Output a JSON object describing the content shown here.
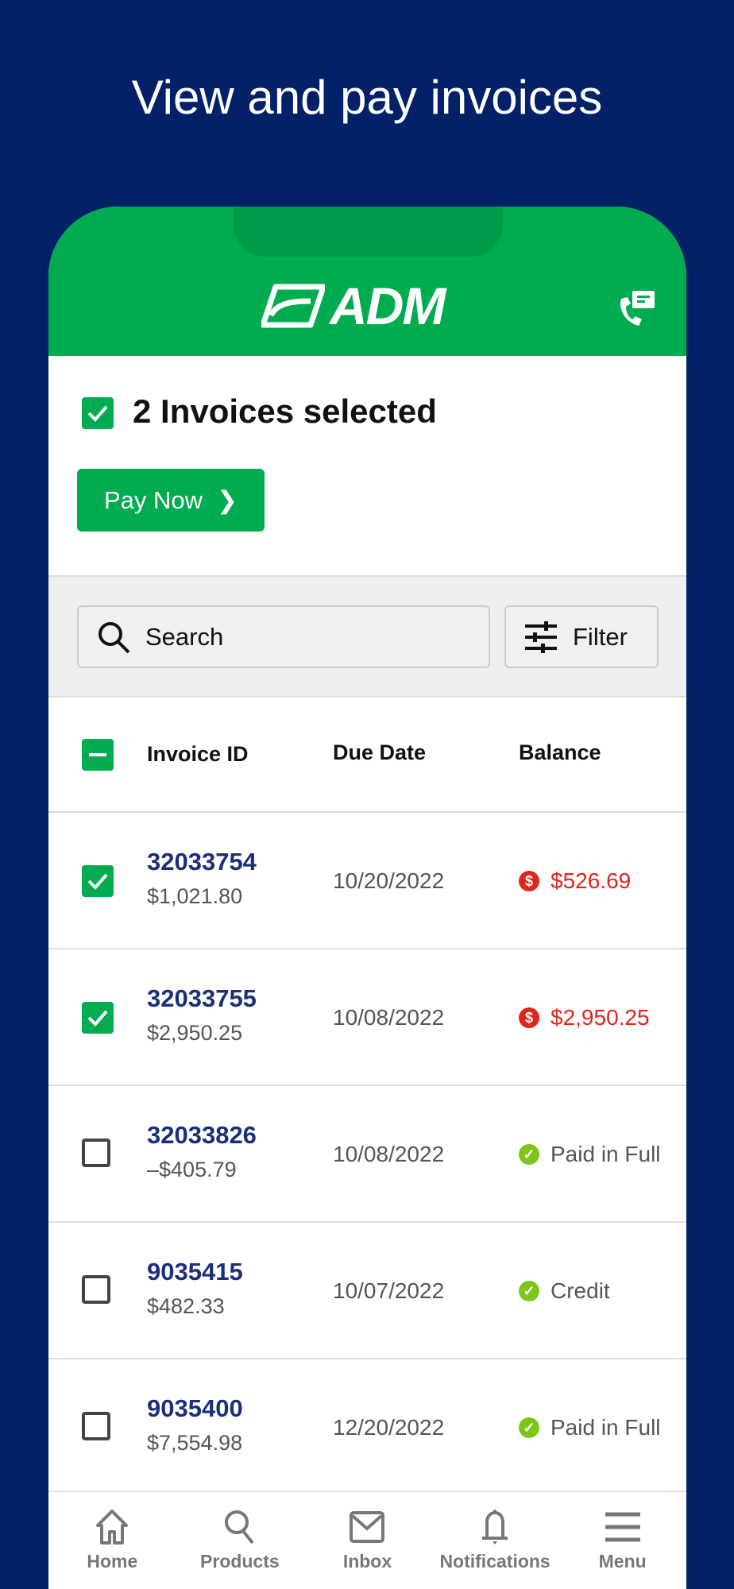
{
  "headline": "View and pay invoices",
  "brand": {
    "logo": "ADM",
    "color": "#00ac4f"
  },
  "selection": {
    "text": "2 Invoices selected",
    "pay_label": "Pay Now"
  },
  "search": {
    "placeholder": "Search"
  },
  "filter": {
    "label": "Filter"
  },
  "table": {
    "headers": [
      "Invoice ID",
      "Due Date",
      "Balance"
    ],
    "rows": [
      {
        "id": "32033754",
        "amount": "$1,021.80",
        "due": "10/20/2022",
        "balance": "$526.69",
        "status": "due",
        "checked": true
      },
      {
        "id": "32033755",
        "amount": "$2,950.25",
        "due": "10/08/2022",
        "balance": "$2,950.25",
        "status": "due",
        "checked": true
      },
      {
        "id": "32033826",
        "amount": "–$405.79",
        "due": "10/08/2022",
        "balance": "Paid in Full",
        "status": "ok",
        "checked": false
      },
      {
        "id": "9035415",
        "amount": "$482.33",
        "due": "10/07/2022",
        "balance": "Credit",
        "status": "ok",
        "checked": false
      },
      {
        "id": "9035400",
        "amount": "$7,554.98",
        "due": "12/20/2022",
        "balance": "Paid in Full",
        "status": "ok",
        "checked": false
      }
    ]
  },
  "tabs": [
    {
      "label": "Home",
      "icon": "home-icon"
    },
    {
      "label": "Products",
      "icon": "search-icon"
    },
    {
      "label": "Inbox",
      "icon": "mail-icon"
    },
    {
      "label": "Notifications",
      "icon": "bell-icon"
    },
    {
      "label": "Menu",
      "icon": "menu-icon"
    }
  ],
  "colors": {
    "due": "#e0261b",
    "ok": "#7cc61a",
    "link": "#1a2f78",
    "background": "#022169"
  }
}
